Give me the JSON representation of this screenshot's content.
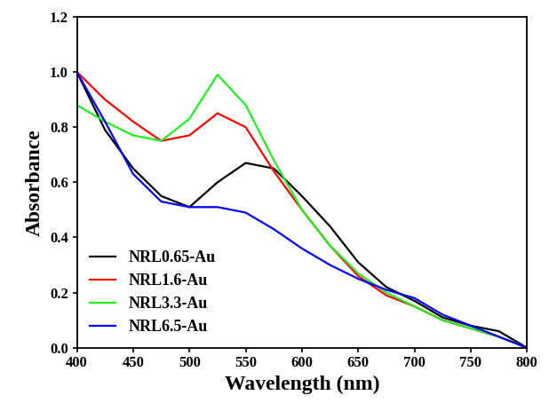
{
  "chart_data": {
    "type": "line",
    "x_label": "Wavelength (nm)",
    "y_label": "Absorbance",
    "x": [
      400,
      425,
      450,
      475,
      500,
      525,
      550,
      575,
      600,
      625,
      650,
      675,
      700,
      725,
      750,
      775,
      800
    ],
    "series": [
      {
        "name": "NRL0.65-Au",
        "color": "#000000",
        "line_style": "solid",
        "values": [
          1.0,
          0.79,
          0.65,
          0.55,
          0.51,
          0.6,
          0.67,
          0.65,
          0.55,
          0.44,
          0.31,
          0.22,
          0.17,
          0.11,
          0.08,
          0.06,
          0.0
        ]
      },
      {
        "name": "NRL1.6-Au",
        "color": "#ff0000",
        "line_style": "solid",
        "values": [
          1.0,
          0.9,
          0.82,
          0.75,
          0.77,
          0.85,
          0.8,
          0.64,
          0.5,
          0.37,
          0.26,
          0.19,
          0.15,
          0.1,
          0.07,
          0.04,
          0.0
        ]
      },
      {
        "name": "NRL3.3-Au",
        "color": "#22ee22",
        "line_style": "solid",
        "values": [
          0.88,
          0.82,
          0.77,
          0.75,
          0.83,
          0.99,
          0.88,
          0.68,
          0.5,
          0.37,
          0.27,
          0.2,
          0.15,
          0.1,
          0.07,
          0.04,
          0.0
        ]
      },
      {
        "name": "NRL6.5-Au",
        "color": "#0000ff",
        "line_style": "solid",
        "values": [
          1.0,
          0.82,
          0.63,
          0.53,
          0.51,
          0.51,
          0.49,
          0.43,
          0.36,
          0.3,
          0.25,
          0.21,
          0.18,
          0.12,
          0.08,
          0.04,
          0.0
        ]
      }
    ],
    "xlim": [
      400,
      800
    ],
    "xticks": [
      400,
      450,
      500,
      550,
      600,
      650,
      700,
      750,
      800
    ],
    "ylim": [
      0.0,
      1.2
    ],
    "yticks": [
      0.0,
      0.2,
      0.4,
      0.6,
      0.8,
      1.0,
      1.2
    ],
    "legend": "lower left",
    "grid": false
  }
}
